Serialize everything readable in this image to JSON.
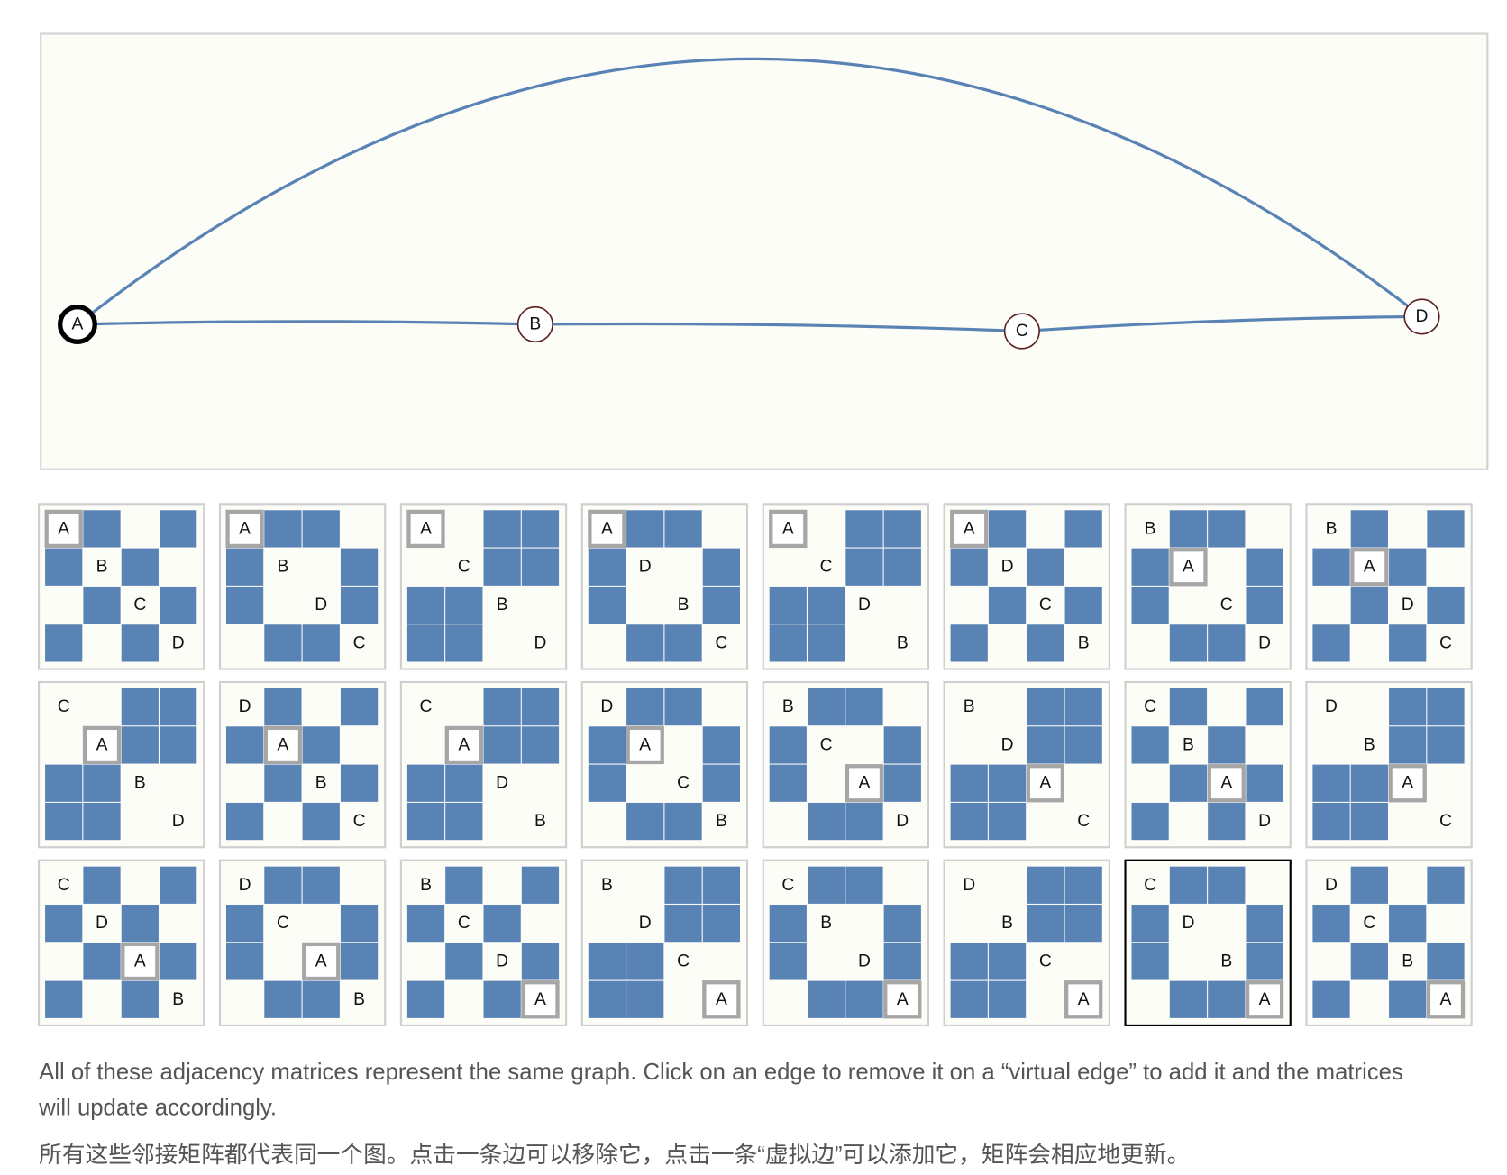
{
  "graph": {
    "nodes": [
      "A",
      "B",
      "C",
      "D"
    ],
    "edges": [
      [
        "A",
        "B"
      ],
      [
        "B",
        "C"
      ],
      [
        "C",
        "D"
      ],
      [
        "A",
        "D"
      ]
    ]
  },
  "matrices": [
    {
      "order": [
        "A",
        "B",
        "C",
        "D"
      ]
    },
    {
      "order": [
        "A",
        "B",
        "D",
        "C"
      ]
    },
    {
      "order": [
        "A",
        "C",
        "B",
        "D"
      ]
    },
    {
      "order": [
        "A",
        "D",
        "B",
        "C"
      ]
    },
    {
      "order": [
        "A",
        "C",
        "D",
        "B"
      ]
    },
    {
      "order": [
        "A",
        "D",
        "C",
        "B"
      ]
    },
    {
      "order": [
        "B",
        "A",
        "C",
        "D"
      ]
    },
    {
      "order": [
        "B",
        "A",
        "D",
        "C"
      ]
    },
    {
      "order": [
        "C",
        "A",
        "B",
        "D"
      ]
    },
    {
      "order": [
        "D",
        "A",
        "B",
        "C"
      ]
    },
    {
      "order": [
        "C",
        "A",
        "D",
        "B"
      ]
    },
    {
      "order": [
        "D",
        "A",
        "C",
        "B"
      ]
    },
    {
      "order": [
        "B",
        "C",
        "A",
        "D"
      ]
    },
    {
      "order": [
        "B",
        "D",
        "A",
        "C"
      ]
    },
    {
      "order": [
        "C",
        "B",
        "A",
        "D"
      ]
    },
    {
      "order": [
        "D",
        "B",
        "A",
        "C"
      ]
    },
    {
      "order": [
        "C",
        "D",
        "A",
        "B"
      ]
    },
    {
      "order": [
        "D",
        "C",
        "A",
        "B"
      ]
    },
    {
      "order": [
        "B",
        "C",
        "D",
        "A"
      ]
    },
    {
      "order": [
        "B",
        "D",
        "C",
        "A"
      ]
    },
    {
      "order": [
        "C",
        "B",
        "D",
        "A"
      ]
    },
    {
      "order": [
        "D",
        "B",
        "C",
        "A"
      ]
    },
    {
      "order": [
        "C",
        "D",
        "B",
        "A"
      ]
    },
    {
      "order": [
        "D",
        "C",
        "B",
        "A"
      ]
    }
  ],
  "selected_matrix": 22,
  "caption": {
    "en": "All of these adjacency matrices represent the same graph. Click on an edge to remove it on a “virtual edge” to add it and the matrices will update accordingly.",
    "zh": "所有这些邻接矩阵都代表同一个图。点击一条边可以移除它，点击一条“虚拟边”可以添加它，矩阵会相应地更新。"
  }
}
